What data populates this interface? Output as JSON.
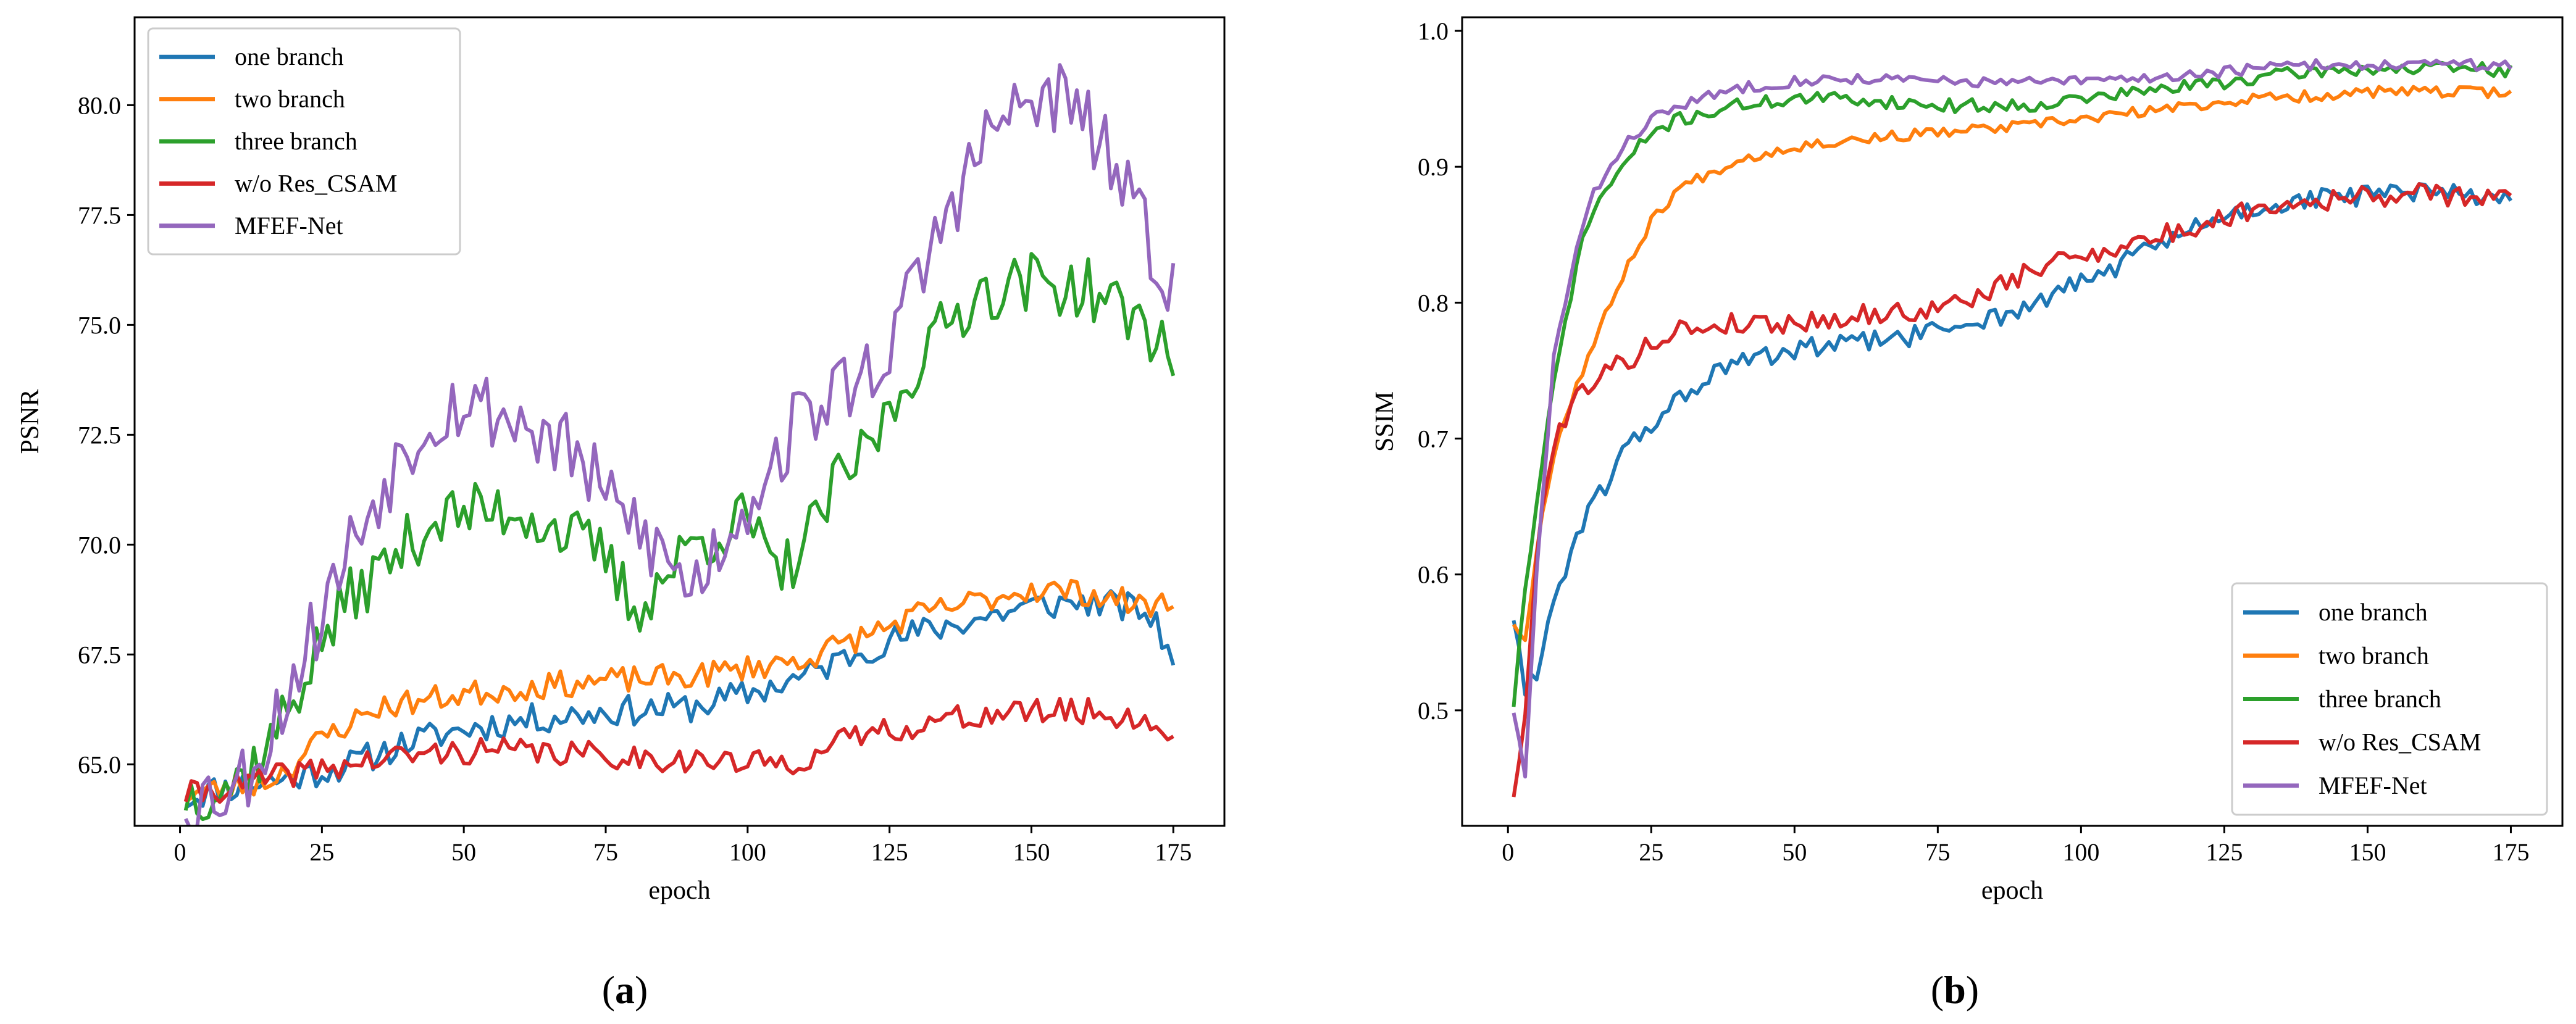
{
  "colors": {
    "one branch": "#1f77b4",
    "two branch": "#ff7f0e",
    "three branch": "#2ca02c",
    "w/o Res_CSAM": "#d62728",
    "MFEF-Net": "#9467bd"
  },
  "chart_data": [
    {
      "type": "line",
      "caption_parts": [
        "(",
        "a",
        ")"
      ],
      "xlabel": "epoch",
      "ylabel": "PSNR",
      "xlim": [
        -8,
        184
      ],
      "ylim": [
        63.6,
        82.0
      ],
      "xticks": [
        0,
        25,
        50,
        75,
        100,
        125,
        150,
        175
      ],
      "yticks": [
        65.0,
        67.5,
        70.0,
        72.5,
        75.0,
        77.5,
        80.0
      ],
      "ytick_labels": [
        "65.0",
        "67.5",
        "70.0",
        "72.5",
        "75.0",
        "77.5",
        "80.0"
      ],
      "grid": false,
      "legend_loc": "upper left",
      "series": [
        {
          "name": "one branch",
          "keypoints": [
            [
              1,
              64.2
            ],
            [
              5,
              64.4
            ],
            [
              10,
              64.5
            ],
            [
              20,
              64.7
            ],
            [
              30,
              65.0
            ],
            [
              40,
              65.5
            ],
            [
              50,
              65.8
            ],
            [
              60,
              66.0
            ],
            [
              75,
              66.2
            ],
            [
              90,
              66.3
            ],
            [
              100,
              66.6
            ],
            [
              110,
              67.0
            ],
            [
              120,
              67.6
            ],
            [
              130,
              68.0
            ],
            [
              140,
              68.3
            ],
            [
              150,
              68.6
            ],
            [
              160,
              68.7
            ],
            [
              170,
              68.5
            ],
            [
              175,
              67.5
            ]
          ],
          "noise": 0.35,
          "seed": 11
        },
        {
          "name": "two branch",
          "keypoints": [
            [
              1,
              64.3
            ],
            [
              10,
              64.5
            ],
            [
              15,
              64.6
            ],
            [
              20,
              65.0
            ],
            [
              25,
              65.6
            ],
            [
              35,
              66.3
            ],
            [
              50,
              66.6
            ],
            [
              65,
              66.8
            ],
            [
              75,
              66.9
            ],
            [
              90,
              67.0
            ],
            [
              100,
              67.2
            ],
            [
              110,
              67.4
            ],
            [
              120,
              67.9
            ],
            [
              130,
              68.4
            ],
            [
              140,
              68.7
            ],
            [
              150,
              69.0
            ],
            [
              160,
              68.9
            ],
            [
              170,
              68.6
            ],
            [
              175,
              68.7
            ]
          ],
          "noise": 0.3,
          "seed": 23
        },
        {
          "name": "three branch",
          "keypoints": [
            [
              1,
              64.3
            ],
            [
              10,
              64.6
            ],
            [
              15,
              65.3
            ],
            [
              20,
              66.5
            ],
            [
              25,
              67.8
            ],
            [
              30,
              68.8
            ],
            [
              40,
              70.0
            ],
            [
              45,
              70.6
            ],
            [
              50,
              70.7
            ],
            [
              60,
              70.8
            ],
            [
              70,
              70.1
            ],
            [
              75,
              69.7
            ],
            [
              80,
              68.5
            ],
            [
              85,
              69.2
            ],
            [
              90,
              70.0
            ],
            [
              95,
              70.3
            ],
            [
              100,
              70.6
            ],
            [
              105,
              69.2
            ],
            [
              110,
              70.0
            ],
            [
              115,
              71.2
            ],
            [
              120,
              72.0
            ],
            [
              125,
              73.0
            ],
            [
              130,
              74.2
            ],
            [
              135,
              75.0
            ],
            [
              140,
              75.7
            ],
            [
              150,
              76.0
            ],
            [
              160,
              75.8
            ],
            [
              170,
              75.0
            ],
            [
              175,
              74.3
            ]
          ],
          "noise": 0.7,
          "seed": 37
        },
        {
          "name": "w/o Res_CSAM",
          "keypoints": [
            [
              1,
              64.3
            ],
            [
              10,
              64.5
            ],
            [
              20,
              64.8
            ],
            [
              30,
              65.0
            ],
            [
              40,
              65.2
            ],
            [
              50,
              65.3
            ],
            [
              60,
              65.3
            ],
            [
              75,
              65.2
            ],
            [
              90,
              65.1
            ],
            [
              100,
              65.0
            ],
            [
              110,
              65.1
            ],
            [
              115,
              65.4
            ],
            [
              120,
              65.7
            ],
            [
              130,
              65.9
            ],
            [
              140,
              66.1
            ],
            [
              150,
              66.2
            ],
            [
              160,
              66.2
            ],
            [
              170,
              66.0
            ],
            [
              175,
              65.6
            ]
          ],
          "noise": 0.3,
          "seed": 41
        },
        {
          "name": "MFEF-Net",
          "keypoints": [
            [
              1,
              64.2
            ],
            [
              10,
              64.5
            ],
            [
              15,
              65.5
            ],
            [
              20,
              67.0
            ],
            [
              25,
              68.5
            ],
            [
              30,
              70.0
            ],
            [
              35,
              71.2
            ],
            [
              40,
              72.3
            ],
            [
              45,
              73.0
            ],
            [
              50,
              73.3
            ],
            [
              60,
              72.8
            ],
            [
              70,
              72.0
            ],
            [
              75,
              71.0
            ],
            [
              80,
              70.5
            ],
            [
              90,
              69.0
            ],
            [
              95,
              70.0
            ],
            [
              100,
              71.0
            ],
            [
              105,
              72.0
            ],
            [
              110,
              73.0
            ],
            [
              115,
              73.4
            ],
            [
              120,
              73.8
            ],
            [
              125,
              74.5
            ],
            [
              130,
              76.0
            ],
            [
              135,
              77.5
            ],
            [
              140,
              78.8
            ],
            [
              145,
              79.7
            ],
            [
              150,
              80.0
            ],
            [
              155,
              80.2
            ],
            [
              160,
              79.5
            ],
            [
              165,
              78.5
            ],
            [
              170,
              77.0
            ],
            [
              175,
              76.0
            ]
          ],
          "noise": 0.9,
          "seed": 53
        }
      ]
    },
    {
      "type": "line",
      "caption_parts": [
        "(",
        "b",
        ")"
      ],
      "xlabel": "epoch",
      "ylabel": "SSIM",
      "xlim": [
        -8,
        184
      ],
      "ylim": [
        0.415,
        1.01
      ],
      "xticks": [
        0,
        25,
        50,
        75,
        100,
        125,
        150,
        175
      ],
      "yticks": [
        0.5,
        0.6,
        0.7,
        0.8,
        0.9,
        1.0
      ],
      "ytick_labels": [
        "0.5",
        "0.6",
        "0.7",
        "0.8",
        "0.9",
        "1.0"
      ],
      "grid": false,
      "legend_loc": "lower right",
      "series": [
        {
          "name": "one branch",
          "keypoints": [
            [
              1,
              0.57
            ],
            [
              3,
              0.51
            ],
            [
              5,
              0.53
            ],
            [
              8,
              0.58
            ],
            [
              12,
              0.63
            ],
            [
              15,
              0.65
            ],
            [
              20,
              0.69
            ],
            [
              25,
              0.71
            ],
            [
              30,
              0.73
            ],
            [
              35,
              0.745
            ],
            [
              40,
              0.755
            ],
            [
              50,
              0.765
            ],
            [
              60,
              0.77
            ],
            [
              70,
              0.775
            ],
            [
              80,
              0.785
            ],
            [
              90,
              0.795
            ],
            [
              100,
              0.815
            ],
            [
              110,
              0.835
            ],
            [
              120,
              0.855
            ],
            [
              130,
              0.87
            ],
            [
              140,
              0.875
            ],
            [
              150,
              0.88
            ],
            [
              160,
              0.88
            ],
            [
              170,
              0.88
            ],
            [
              175,
              0.875
            ]
          ],
          "noise": 0.008,
          "seed": 61
        },
        {
          "name": "two branch",
          "keypoints": [
            [
              1,
              0.565
            ],
            [
              3,
              0.55
            ],
            [
              5,
              0.62
            ],
            [
              8,
              0.69
            ],
            [
              12,
              0.74
            ],
            [
              15,
              0.77
            ],
            [
              20,
              0.82
            ],
            [
              25,
              0.86
            ],
            [
              30,
              0.885
            ],
            [
              40,
              0.905
            ],
            [
              50,
              0.915
            ],
            [
              60,
              0.92
            ],
            [
              75,
              0.925
            ],
            [
              90,
              0.93
            ],
            [
              100,
              0.935
            ],
            [
              110,
              0.94
            ],
            [
              120,
              0.945
            ],
            [
              130,
              0.95
            ],
            [
              140,
              0.952
            ],
            [
              150,
              0.955
            ],
            [
              160,
              0.955
            ],
            [
              170,
              0.955
            ],
            [
              175,
              0.955
            ]
          ],
          "noise": 0.004,
          "seed": 67
        },
        {
          "name": "three branch",
          "keypoints": [
            [
              1,
              0.505
            ],
            [
              3,
              0.59
            ],
            [
              5,
              0.65
            ],
            [
              8,
              0.74
            ],
            [
              12,
              0.83
            ],
            [
              15,
              0.87
            ],
            [
              20,
              0.9
            ],
            [
              25,
              0.925
            ],
            [
              30,
              0.935
            ],
            [
              40,
              0.945
            ],
            [
              50,
              0.95
            ],
            [
              60,
              0.95
            ],
            [
              75,
              0.945
            ],
            [
              90,
              0.945
            ],
            [
              100,
              0.95
            ],
            [
              110,
              0.955
            ],
            [
              120,
              0.96
            ],
            [
              130,
              0.965
            ],
            [
              140,
              0.97
            ],
            [
              150,
              0.972
            ],
            [
              160,
              0.972
            ],
            [
              170,
              0.972
            ],
            [
              175,
              0.97
            ]
          ],
          "noise": 0.005,
          "seed": 71
        },
        {
          "name": "w/o Res_CSAM",
          "keypoints": [
            [
              1,
              0.44
            ],
            [
              3,
              0.49
            ],
            [
              5,
              0.62
            ],
            [
              8,
              0.7
            ],
            [
              12,
              0.73
            ],
            [
              15,
              0.745
            ],
            [
              20,
              0.755
            ],
            [
              25,
              0.77
            ],
            [
              30,
              0.78
            ],
            [
              40,
              0.785
            ],
            [
              50,
              0.785
            ],
            [
              60,
              0.79
            ],
            [
              75,
              0.795
            ],
            [
              85,
              0.81
            ],
            [
              95,
              0.83
            ],
            [
              100,
              0.835
            ],
            [
              110,
              0.845
            ],
            [
              120,
              0.855
            ],
            [
              130,
              0.87
            ],
            [
              140,
              0.875
            ],
            [
              150,
              0.878
            ],
            [
              160,
              0.88
            ],
            [
              170,
              0.878
            ],
            [
              175,
              0.875
            ]
          ],
          "noise": 0.008,
          "seed": 79
        },
        {
          "name": "MFEF-Net",
          "keypoints": [
            [
              1,
              0.5
            ],
            [
              3,
              0.45
            ],
            [
              5,
              0.6
            ],
            [
              8,
              0.76
            ],
            [
              12,
              0.84
            ],
            [
              15,
              0.88
            ],
            [
              20,
              0.915
            ],
            [
              25,
              0.935
            ],
            [
              30,
              0.945
            ],
            [
              40,
              0.958
            ],
            [
              50,
              0.963
            ],
            [
              60,
              0.965
            ],
            [
              75,
              0.963
            ],
            [
              90,
              0.962
            ],
            [
              100,
              0.963
            ],
            [
              110,
              0.965
            ],
            [
              120,
              0.968
            ],
            [
              130,
              0.972
            ],
            [
              140,
              0.975
            ],
            [
              150,
              0.975
            ],
            [
              160,
              0.975
            ],
            [
              170,
              0.975
            ],
            [
              175,
              0.975
            ]
          ],
          "noise": 0.004,
          "seed": 83
        }
      ]
    }
  ]
}
